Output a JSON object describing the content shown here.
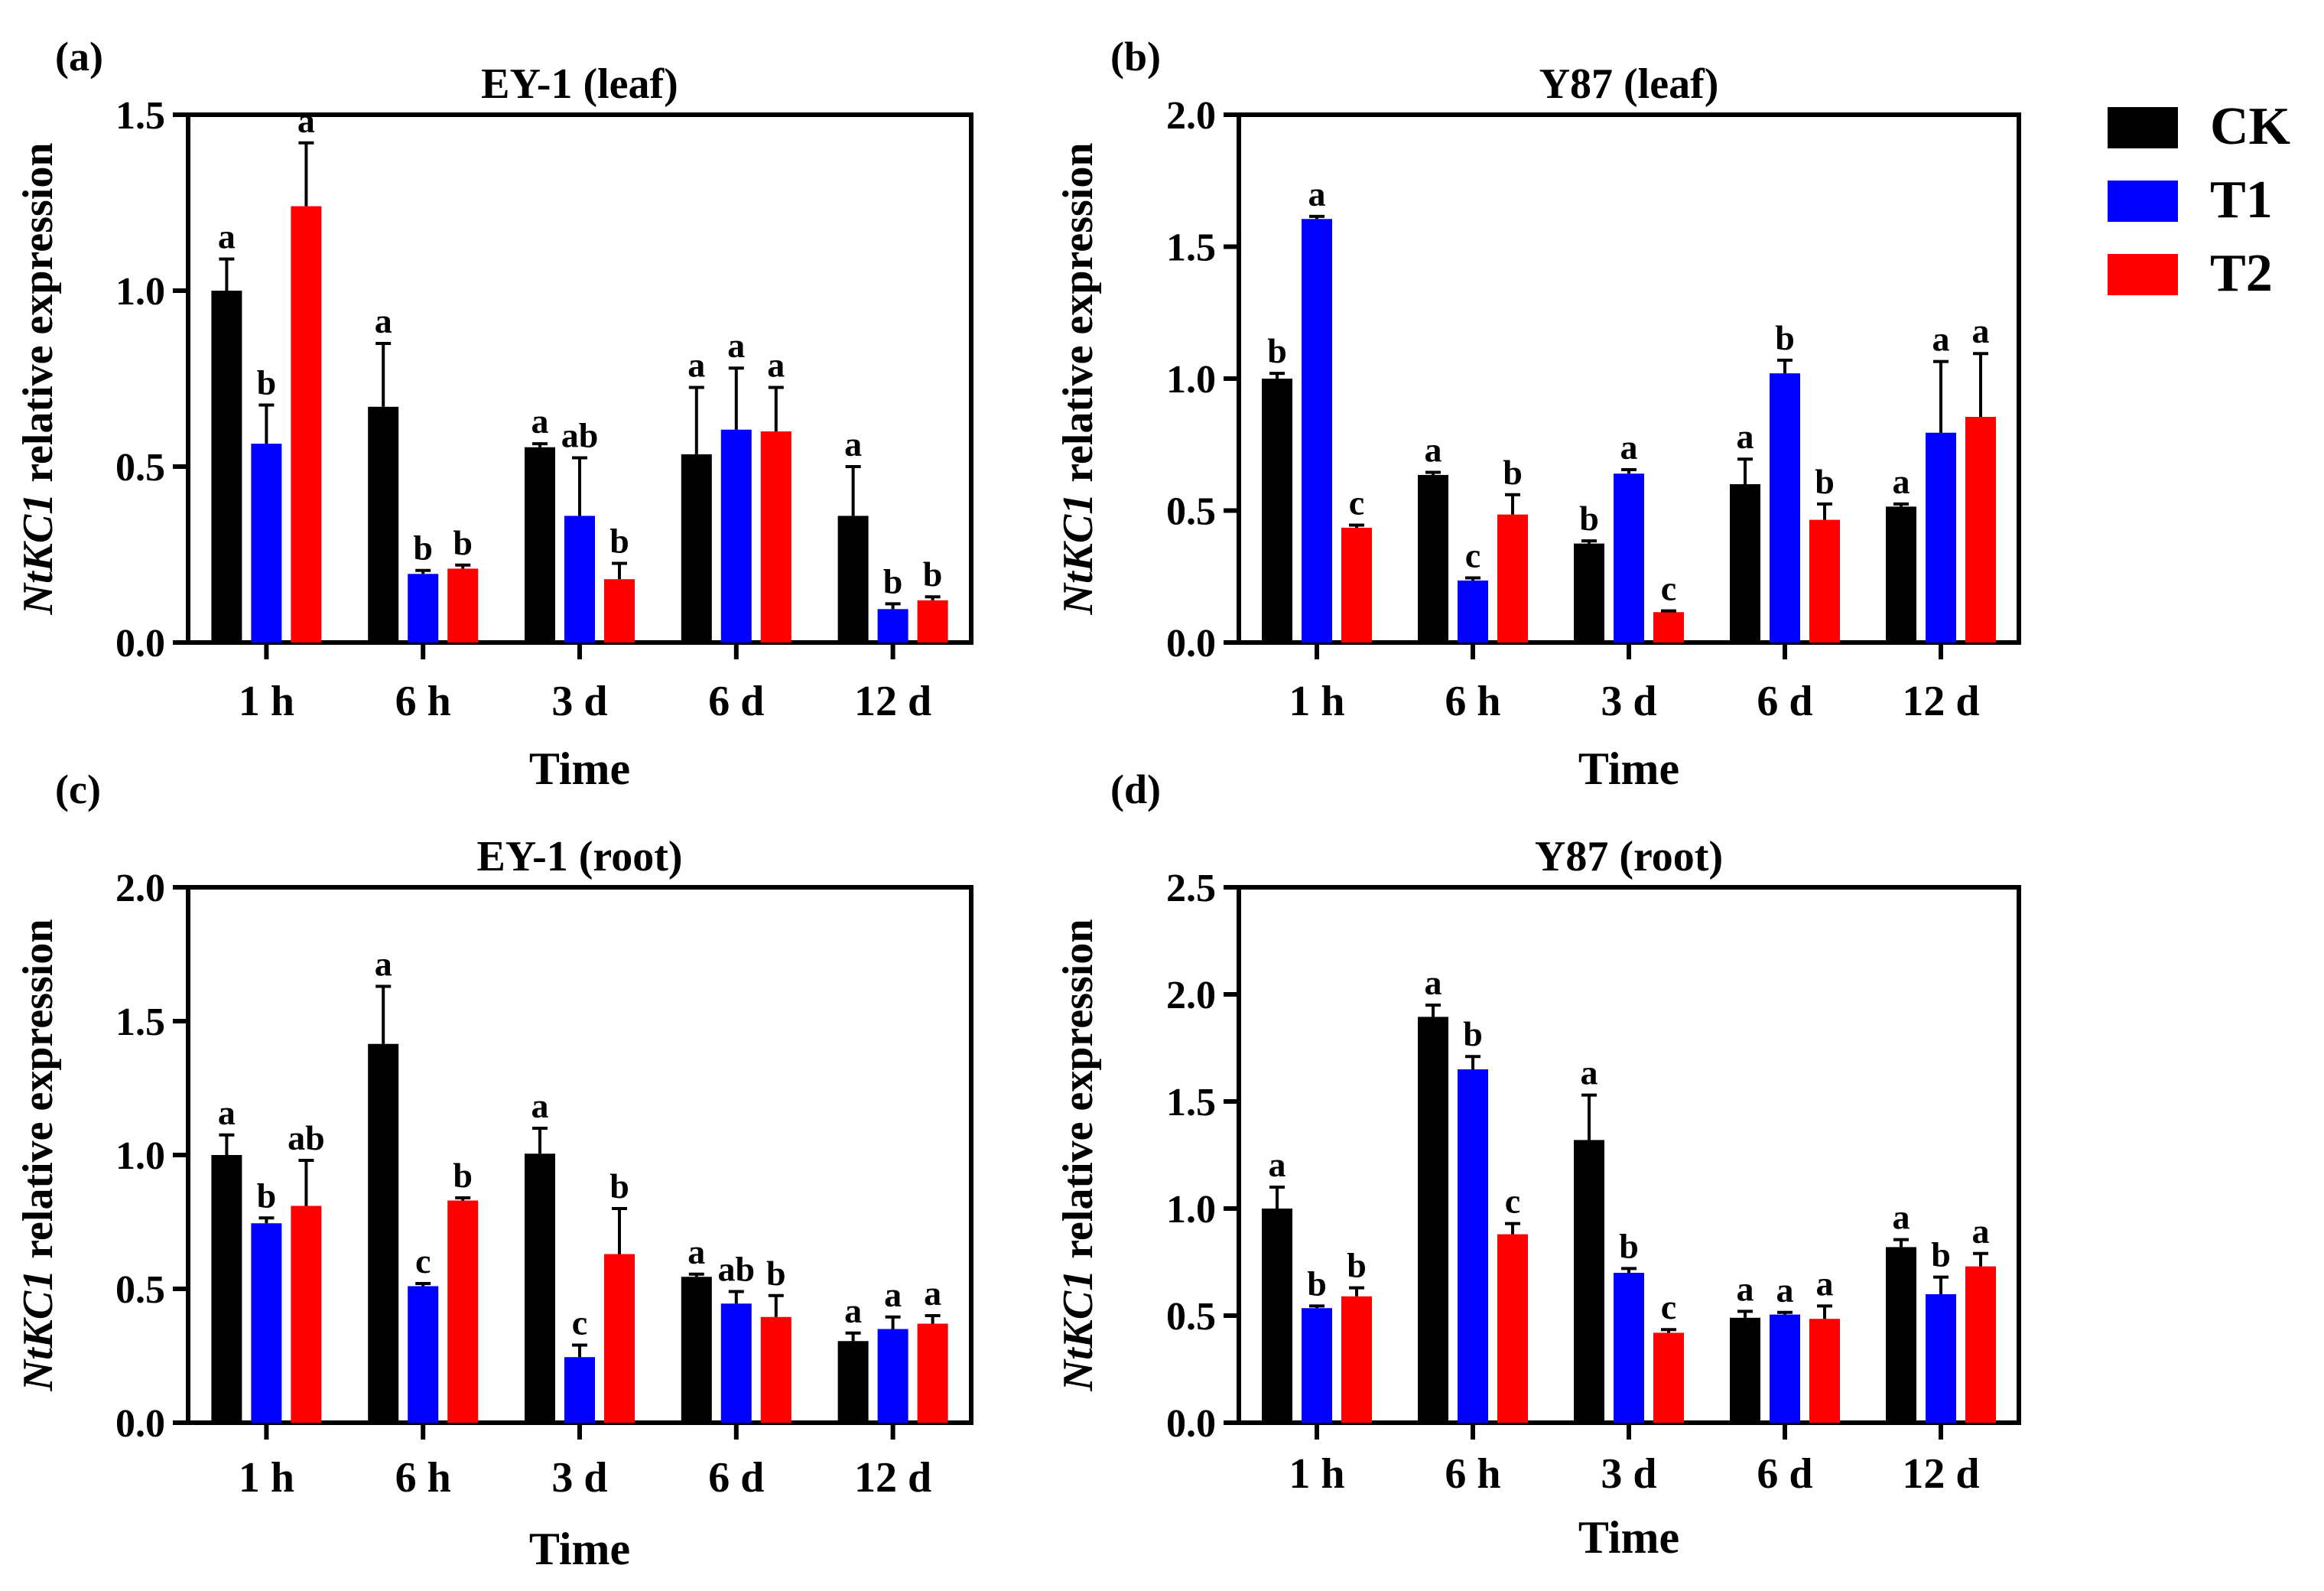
{
  "legend": {
    "placement": "top-right",
    "items": [
      {
        "name": "CK",
        "color": "#000000"
      },
      {
        "name": "T1",
        "color": "#0000FF"
      },
      {
        "name": "T2",
        "color": "#FF0000"
      }
    ]
  },
  "chart_data": [
    {
      "type": "bar",
      "panel_label": "(a)",
      "title": "EY-1 (leaf)",
      "xlabel": "Time",
      "ylabel_italic": "NtKC1",
      "ylabel_rest": " relative expression",
      "categories": [
        "1 h",
        "6 h",
        "3 d",
        "6 d",
        "12 d"
      ],
      "ylim": [
        0,
        1.5
      ],
      "yticks": [
        "0.0",
        "0.5",
        "1.0",
        "1.5"
      ],
      "series": [
        {
          "name": "CK",
          "color": "#000000",
          "values": [
            1.0,
            0.67,
            0.555,
            0.535,
            0.36
          ],
          "errors": [
            0.09,
            0.18,
            0.01,
            0.19,
            0.14
          ],
          "letters": [
            "a",
            "a",
            "a",
            "a",
            "a"
          ]
        },
        {
          "name": "T1",
          "color": "#0000FF",
          "values": [
            0.565,
            0.195,
            0.36,
            0.605,
            0.095
          ],
          "errors": [
            0.11,
            0.01,
            0.165,
            0.175,
            0.015
          ],
          "letters": [
            "b",
            "b",
            "ab",
            "a",
            "b"
          ]
        },
        {
          "name": "T2",
          "color": "#FF0000",
          "values": [
            1.24,
            0.21,
            0.18,
            0.6,
            0.12
          ],
          "errors": [
            0.18,
            0.01,
            0.045,
            0.125,
            0.01
          ],
          "letters": [
            "a",
            "b",
            "b",
            "a",
            "b"
          ]
        }
      ]
    },
    {
      "type": "bar",
      "panel_label": "(b)",
      "title": "Y87 (leaf)",
      "xlabel": "Time",
      "ylabel_italic": "NtKC1",
      "ylabel_rest": " relative expression",
      "categories": [
        "1 h",
        "6 h",
        "3 d",
        "6 d",
        "12 d"
      ],
      "ylim": [
        0,
        2.0
      ],
      "yticks": [
        "0.0",
        "0.5",
        "1.0",
        "1.5",
        "2.0"
      ],
      "series": [
        {
          "name": "CK",
          "color": "#000000",
          "values": [
            1.0,
            0.635,
            0.375,
            0.6,
            0.515
          ],
          "errors": [
            0.02,
            0.01,
            0.01,
            0.095,
            0.01
          ],
          "letters": [
            "b",
            "a",
            "b",
            "a",
            "a"
          ]
        },
        {
          "name": "T1",
          "color": "#0000FF",
          "values": [
            1.605,
            0.235,
            0.64,
            1.02,
            0.795
          ],
          "errors": [
            0.01,
            0.01,
            0.015,
            0.05,
            0.27
          ],
          "letters": [
            "a",
            "c",
            "a",
            "b",
            "a"
          ]
        },
        {
          "name": "T2",
          "color": "#FF0000",
          "values": [
            0.435,
            0.485,
            0.115,
            0.465,
            0.855
          ],
          "errors": [
            0.01,
            0.075,
            0.005,
            0.06,
            0.24
          ],
          "letters": [
            "c",
            "b",
            "c",
            "b",
            "a"
          ]
        }
      ]
    },
    {
      "type": "bar",
      "panel_label": "(c)",
      "title": "EY-1 (root)",
      "xlabel": "Time",
      "ylabel_italic": "NtKC1",
      "ylabel_rest": " relative expression",
      "categories": [
        "1 h",
        "6 h",
        "3 d",
        "6 d",
        "12 d"
      ],
      "ylim": [
        0,
        2.0
      ],
      "yticks": [
        "0.0",
        "0.5",
        "1.0",
        "1.5",
        "2.0"
      ],
      "series": [
        {
          "name": "CK",
          "color": "#000000",
          "values": [
            1.0,
            1.415,
            1.005,
            0.545,
            0.305
          ],
          "errors": [
            0.075,
            0.215,
            0.095,
            0.01,
            0.03
          ],
          "letters": [
            "a",
            "a",
            "a",
            "a",
            "a"
          ]
        },
        {
          "name": "T1",
          "color": "#0000FF",
          "values": [
            0.745,
            0.51,
            0.245,
            0.445,
            0.35
          ],
          "errors": [
            0.02,
            0.01,
            0.045,
            0.045,
            0.045
          ],
          "letters": [
            "b",
            "c",
            "c",
            "ab",
            "a"
          ]
        },
        {
          "name": "T2",
          "color": "#FF0000",
          "values": [
            0.81,
            0.83,
            0.63,
            0.395,
            0.37
          ],
          "errors": [
            0.17,
            0.01,
            0.17,
            0.08,
            0.03
          ],
          "letters": [
            "ab",
            "b",
            "b",
            "b",
            "a"
          ]
        }
      ]
    },
    {
      "type": "bar",
      "panel_label": "(d)",
      "title": "Y87 (root)",
      "xlabel": "Time",
      "ylabel_italic": "NtKC1",
      "ylabel_rest": " relative expression",
      "categories": [
        "1 h",
        "6 h",
        "3 d",
        "6 d",
        "12 d"
      ],
      "ylim": [
        0,
        2.5
      ],
      "yticks": [
        "0.0",
        "0.5",
        "1.0",
        "1.5",
        "2.0",
        "2.5"
      ],
      "series": [
        {
          "name": "CK",
          "color": "#000000",
          "values": [
            1.0,
            1.895,
            1.32,
            0.49,
            0.82
          ],
          "errors": [
            0.1,
            0.055,
            0.21,
            0.03,
            0.035
          ],
          "letters": [
            "a",
            "a",
            "a",
            "a",
            "a"
          ]
        },
        {
          "name": "T1",
          "color": "#0000FF",
          "values": [
            0.535,
            1.65,
            0.7,
            0.505,
            0.6
          ],
          "errors": [
            0.01,
            0.06,
            0.02,
            0.01,
            0.08
          ],
          "letters": [
            "b",
            "b",
            "b",
            "a",
            "b"
          ]
        },
        {
          "name": "T2",
          "color": "#FF0000",
          "values": [
            0.59,
            0.88,
            0.42,
            0.485,
            0.73
          ],
          "errors": [
            0.04,
            0.05,
            0.015,
            0.06,
            0.06
          ],
          "letters": [
            "b",
            "c",
            "c",
            "a",
            "a"
          ]
        }
      ]
    }
  ]
}
